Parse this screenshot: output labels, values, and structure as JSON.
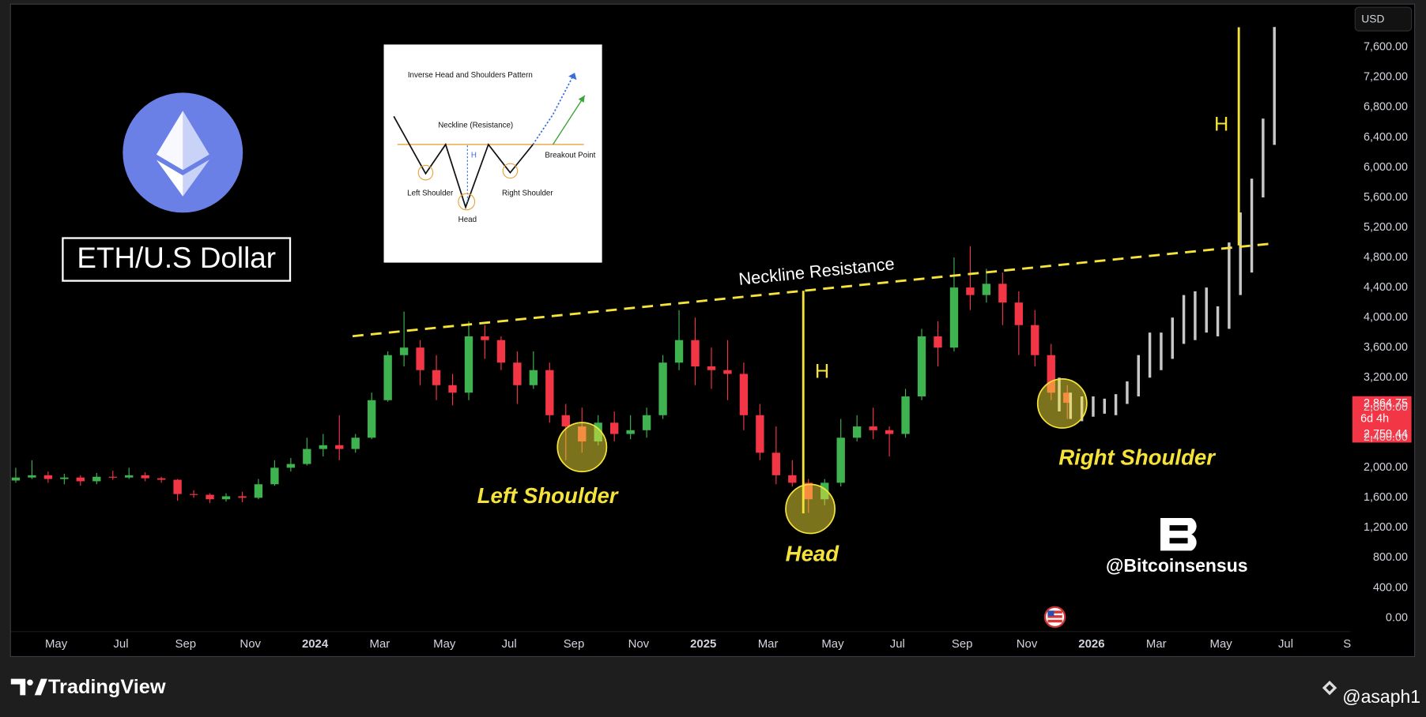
{
  "chart_data": {
    "type": "candlestick",
    "title": "ETH/U.S Dollar",
    "currency_button": "USD",
    "xlim": [
      2.6,
      44.2
    ],
    "xticks": [
      {
        "value": 4,
        "label": "May"
      },
      {
        "value": 6,
        "label": "Jul"
      },
      {
        "value": 8,
        "label": "Sep"
      },
      {
        "value": 10,
        "label": "Nov"
      },
      {
        "value": 12,
        "label": "2024"
      },
      {
        "value": 14,
        "label": "Mar"
      },
      {
        "value": 16,
        "label": "May"
      },
      {
        "value": 18,
        "label": "Jul"
      },
      {
        "value": 20,
        "label": "Sep"
      },
      {
        "value": 22,
        "label": "Nov"
      },
      {
        "value": 24,
        "label": "2025"
      },
      {
        "value": 26,
        "label": "Mar"
      },
      {
        "value": 28,
        "label": "May"
      },
      {
        "value": 30,
        "label": "Jul"
      },
      {
        "value": 32,
        "label": "Sep"
      },
      {
        "value": 34,
        "label": "Nov"
      },
      {
        "value": 36,
        "label": "2026"
      },
      {
        "value": 38,
        "label": "Mar"
      },
      {
        "value": 40,
        "label": "May"
      },
      {
        "value": 42,
        "label": "Jul"
      },
      {
        "value": 44,
        "label": "Se"
      }
    ],
    "ylim": [
      -182,
      8169
    ],
    "yticks": [
      {
        "value": 0,
        "label": "0.00"
      },
      {
        "value": 400,
        "label": "400.00"
      },
      {
        "value": 800,
        "label": "800.00"
      },
      {
        "value": 1200,
        "label": "1,200.00"
      },
      {
        "value": 1600,
        "label": "1,600.00"
      },
      {
        "value": 2000,
        "label": "2,000.00"
      },
      {
        "value": 2400,
        "label": "2,400.00"
      },
      {
        "value": 2800,
        "label": "2,800.00"
      },
      {
        "value": 3200,
        "label": "3,200.00"
      },
      {
        "value": 3600,
        "label": "3,600.00"
      },
      {
        "value": 4000,
        "label": "4,000.00"
      },
      {
        "value": 4400,
        "label": "4,400.00"
      },
      {
        "value": 4800,
        "label": "4,800.00"
      },
      {
        "value": 5200,
        "label": "5,200.00"
      },
      {
        "value": 5600,
        "label": "5,600.00"
      },
      {
        "value": 6000,
        "label": "6,000.00"
      },
      {
        "value": 6400,
        "label": "6,400.00"
      },
      {
        "value": 6800,
        "label": "6,800.00"
      },
      {
        "value": 7200,
        "label": "7,200.00"
      },
      {
        "value": 7600,
        "label": "7,600.00"
      }
    ],
    "grid": false,
    "up_color": "#3fb34f",
    "down_color": "#f23645",
    "projection_color": "#c8c8c8",
    "highlight_color": "#f5e33a",
    "candles": {
      "x": [
        2.75,
        3.25,
        3.75,
        4.25,
        4.75,
        5.25,
        5.75,
        6.25,
        6.75,
        7.25,
        7.75,
        8.25,
        8.75,
        9.25,
        9.75,
        10.25,
        10.75,
        11.25,
        11.75,
        12.25,
        12.75,
        13.25,
        13.75,
        14.25,
        14.75,
        15.25,
        15.75,
        16.25,
        16.75,
        17.25,
        17.75,
        18.25,
        18.75,
        19.25,
        19.75,
        20.25,
        20.75,
        21.25,
        21.75,
        22.25,
        22.75,
        23.25,
        23.75,
        24.25,
        24.75,
        25.25,
        25.75,
        26.25,
        26.75,
        27.25,
        27.75,
        28.25,
        28.75,
        29.25,
        29.75,
        30.25,
        30.75,
        31.25,
        31.75,
        32.25,
        32.75,
        33.25,
        33.75,
        34.25,
        34.75,
        35.25
      ],
      "open": [
        1830,
        1870,
        1900,
        1850,
        1870,
        1820,
        1880,
        1870,
        1900,
        1860,
        1840,
        1650,
        1640,
        1580,
        1620,
        1600,
        1780,
        2000,
        2050,
        2250,
        2300,
        2250,
        2400,
        2900,
        3500,
        3600,
        3300,
        3100,
        3000,
        3750,
        3700,
        3400,
        3100,
        3300,
        2700,
        2550,
        2350,
        2600,
        2450,
        2500,
        2700,
        3400,
        3700,
        3350,
        3300,
        3250,
        2700,
        2200,
        1900,
        1800,
        1580,
        1800,
        2400,
        2550,
        2500,
        2450,
        2950,
        3750,
        3600,
        4400,
        4300,
        4450,
        4200,
        3900,
        3500,
        3000
      ],
      "high": [
        2000,
        2100,
        1950,
        1920,
        1900,
        1930,
        1960,
        2000,
        1940,
        1880,
        1850,
        1700,
        1660,
        1660,
        1680,
        1850,
        2100,
        2130,
        2400,
        2450,
        2700,
        2450,
        3000,
        3550,
        4080,
        3700,
        3500,
        3250,
        3950,
        3900,
        3750,
        3550,
        3550,
        3400,
        2850,
        2800,
        2700,
        2750,
        2700,
        2800,
        3500,
        4100,
        4000,
        3600,
        3700,
        3400,
        2850,
        2550,
        2100,
        1850,
        1850,
        2650,
        2700,
        2800,
        2550,
        3050,
        3850,
        3950,
        4800,
        4950,
        4650,
        4600,
        4350,
        4100,
        3650,
        3100
      ],
      "low": [
        1800,
        1850,
        1800,
        1780,
        1760,
        1780,
        1840,
        1850,
        1820,
        1800,
        1560,
        1600,
        1530,
        1550,
        1540,
        1580,
        1760,
        1950,
        2030,
        2150,
        2100,
        2200,
        2380,
        2880,
        3350,
        3100,
        2900,
        2830,
        2900,
        3450,
        3300,
        2850,
        3050,
        2600,
        2100,
        2200,
        2300,
        2350,
        2380,
        2400,
        2650,
        3300,
        3100,
        3050,
        2900,
        2500,
        2100,
        1780,
        1750,
        1400,
        1500,
        1750,
        2350,
        2380,
        2150,
        2400,
        2900,
        3350,
        3550,
        4100,
        4200,
        3900,
        3500,
        3350,
        2900,
        2650
      ],
      "close": [
        1870,
        1900,
        1850,
        1870,
        1820,
        1880,
        1870,
        1900,
        1860,
        1840,
        1650,
        1640,
        1580,
        1620,
        1600,
        1780,
        2000,
        2050,
        2250,
        2300,
        2250,
        2400,
        2900,
        3500,
        3600,
        3300,
        3100,
        3000,
        3750,
        3700,
        3400,
        3100,
        3300,
        2700,
        2550,
        2350,
        2600,
        2450,
        2500,
        2700,
        3400,
        3700,
        3350,
        3300,
        3250,
        2700,
        2200,
        1900,
        1800,
        1580,
        1800,
        2400,
        2550,
        2500,
        2450,
        2950,
        3750,
        3600,
        4400,
        4300,
        4450,
        4200,
        3900,
        3500,
        3000,
        2864.75
      ]
    },
    "projection": {
      "x": [
        35.0,
        35.35,
        35.7,
        36.05,
        36.4,
        36.75,
        37.1,
        37.45,
        37.8,
        38.15,
        38.5,
        38.85,
        39.2,
        39.55,
        39.9,
        40.25,
        40.6,
        40.95,
        41.3,
        41.65
      ],
      "low": [
        2750,
        2650,
        2620,
        2680,
        2720,
        2700,
        2850,
        2950,
        3200,
        3300,
        3450,
        3650,
        3700,
        3800,
        3750,
        3850,
        4300,
        4600,
        5600,
        6300
      ],
      "high": [
        3200,
        3000,
        2950,
        2950,
        2920,
        2980,
        3150,
        3500,
        3800,
        3800,
        4000,
        4300,
        4350,
        4400,
        4150,
        5000,
        5400,
        5850,
        6650,
        7870
      ]
    },
    "neckline": {
      "label": "Neckline Resistance",
      "x": [
        13.16,
        41.58
      ],
      "values": [
        3752,
        4986
      ]
    },
    "height_lines": [
      {
        "label": "H",
        "x": 27.09,
        "values": [
          1392,
          4357
        ]
      },
      {
        "label": "H",
        "x": 40.55,
        "values": [
          4962,
          7867
        ]
      }
    ],
    "annotations": [
      "Left Shoulder",
      "Head",
      "Right Shoulder"
    ],
    "last_price": {
      "value": 2864.75,
      "label": "2,864.75"
    },
    "countdown": "6d 4h",
    "second_price": {
      "value": 2750.44,
      "label": "2,750.44"
    }
  },
  "inset": {
    "title": "Inverse Head and Shoulders Pattern",
    "neckline": "Neckline (Resistance)",
    "breakout": "Breakout Point",
    "left": "Left Shoulder",
    "head": "Head",
    "right": "Right Shoulder",
    "height": "H"
  },
  "watermark": "@Bitcoinsensus",
  "footer": {
    "brand": "TradingView",
    "author": "@asaph1"
  }
}
